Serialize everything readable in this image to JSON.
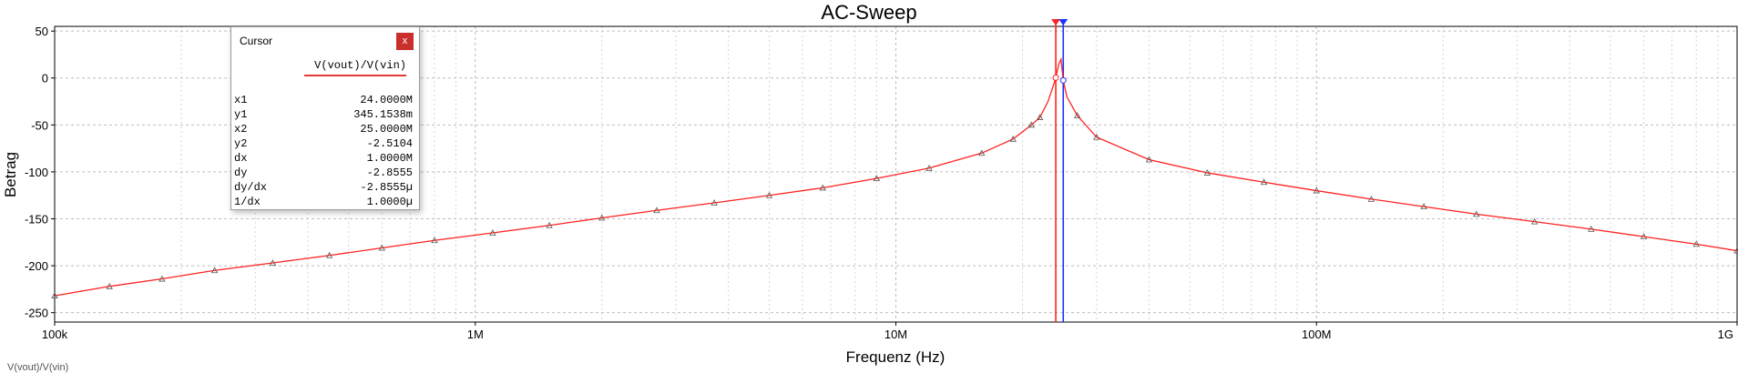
{
  "chart_data": {
    "type": "line",
    "title": "AC-Sweep",
    "xlabel": "Frequenz (Hz)",
    "ylabel": "Betrag",
    "xscale": "log",
    "xlim": [
      100000,
      1000000000
    ],
    "ylim": [
      -260,
      55
    ],
    "x_ticks": [
      {
        "value": 100000,
        "label": "100k"
      },
      {
        "value": 1000000,
        "label": "1M"
      },
      {
        "value": 10000000,
        "label": "10M"
      },
      {
        "value": 100000000,
        "label": "100M"
      },
      {
        "value": 1000000000,
        "label": "1G"
      }
    ],
    "y_ticks": [
      {
        "value": 50,
        "label": "50"
      },
      {
        "value": 0,
        "label": "0"
      },
      {
        "value": -50,
        "label": "-50"
      },
      {
        "value": -100,
        "label": "-100"
      },
      {
        "value": -150,
        "label": "-150"
      },
      {
        "value": -200,
        "label": "-200"
      },
      {
        "value": -250,
        "label": "-250"
      }
    ],
    "grid": true,
    "series": [
      {
        "name": "V(vout)/V(vin)",
        "color": "#ff2020",
        "marker": "triangle",
        "points": [
          [
            100000,
            -232
          ],
          [
            135000,
            -222
          ],
          [
            180000,
            -214
          ],
          [
            240000,
            -205
          ],
          [
            330000,
            -197
          ],
          [
            450000,
            -189
          ],
          [
            600000,
            -181
          ],
          [
            800000,
            -173
          ],
          [
            1100000,
            -165
          ],
          [
            1500000,
            -157
          ],
          [
            2000000,
            -149
          ],
          [
            2700000,
            -141
          ],
          [
            3700000,
            -133
          ],
          [
            5000000,
            -125
          ],
          [
            6700000,
            -117
          ],
          [
            9000000,
            -107
          ],
          [
            12000000,
            -96
          ],
          [
            16000000,
            -80
          ],
          [
            19000000,
            -65
          ],
          [
            21000000,
            -50
          ],
          [
            22000000,
            -42
          ],
          [
            23000000,
            -25
          ],
          [
            23600000,
            -10
          ],
          [
            24000000,
            0.345
          ],
          [
            24400000,
            15
          ],
          [
            24700000,
            20
          ],
          [
            25000000,
            -2.51
          ],
          [
            25500000,
            -20
          ],
          [
            27000000,
            -40
          ],
          [
            30000000,
            -63
          ],
          [
            40000000,
            -87
          ],
          [
            55000000,
            -101
          ],
          [
            75000000,
            -111
          ],
          [
            100000000,
            -120
          ],
          [
            135000000,
            -129
          ],
          [
            180000000,
            -137
          ],
          [
            240000000,
            -145
          ],
          [
            330000000,
            -153
          ],
          [
            450000000,
            -161
          ],
          [
            600000000,
            -169
          ],
          [
            800000000,
            -177
          ],
          [
            1000000000,
            -184
          ]
        ]
      }
    ],
    "cursors": [
      {
        "name": "x1",
        "x": 24000000,
        "color": "#ff2020"
      },
      {
        "name": "x2",
        "x": 25000000,
        "color": "#2030ff"
      }
    ]
  },
  "cursor_window": {
    "title": "Cursor",
    "close_label": "x",
    "signal": "V(vout)/V(vin)",
    "rows": [
      {
        "label": "x1",
        "value": "24.0000M"
      },
      {
        "label": "y1",
        "value": "345.1538m"
      },
      {
        "label": "x2",
        "value": "25.0000M"
      },
      {
        "label": "y2",
        "value": "-2.5104"
      },
      {
        "label": "dx",
        "value": "1.0000M"
      },
      {
        "label": "dy",
        "value": "-2.8555"
      },
      {
        "label": "dy/dx",
        "value": "-2.8555µ"
      },
      {
        "label": "1/dx",
        "value": "1.0000µ"
      }
    ]
  },
  "bottom_note": "V(vout)/V(vin)"
}
